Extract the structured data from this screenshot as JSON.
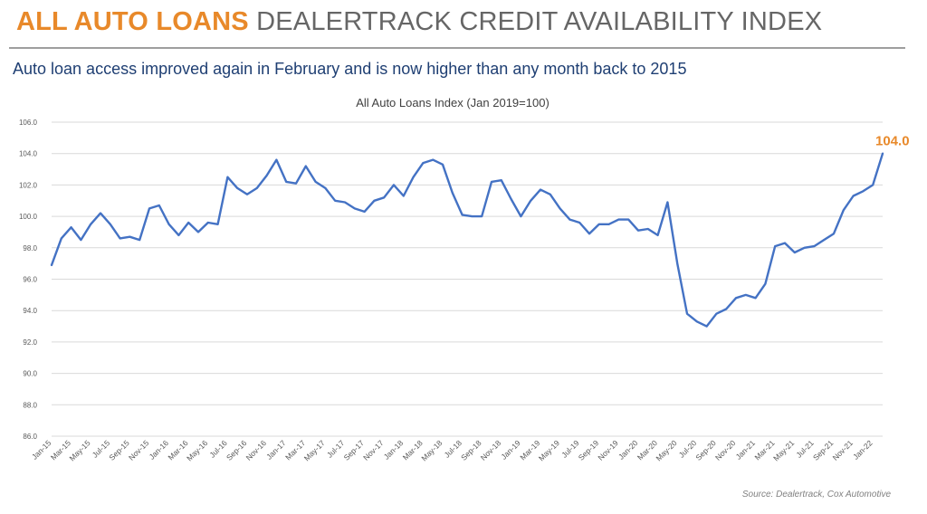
{
  "header": {
    "title_accent": "ALL AUTO LOANS",
    "title_rest": "DEALERTRACK CREDIT AVAILABILITY INDEX",
    "subtitle": "Auto loan access improved again in February and is now higher than any month back to 2015"
  },
  "footer": {
    "source": "Source: Dealertrack, Cox Automotive"
  },
  "colors": {
    "accent": "#e8892a",
    "line": "#4472c4",
    "grid": "#d9d9d9",
    "subtitle": "#1f3f73"
  },
  "chart_data": {
    "type": "line",
    "title": "All Auto Loans Index (Jan 2019=100)",
    "xlabel": "",
    "ylabel": "",
    "ylim": [
      86.0,
      106.0
    ],
    "yticks": [
      "86.0",
      "88.0",
      "90.0",
      "92.0",
      "94.0",
      "96.0",
      "98.0",
      "100.0",
      "102.0",
      "104.0",
      "106.0"
    ],
    "grid": true,
    "tick_labels": [
      "Jan-15",
      "Mar-15",
      "May-15",
      "Jul-15",
      "Sep-15",
      "Nov-15",
      "Jan-16",
      "Mar-16",
      "May-16",
      "Jul-16",
      "Sep-16",
      "Nov-16",
      "Jan-17",
      "Mar-17",
      "May-17",
      "Jul-17",
      "Sep-17",
      "Nov-17",
      "Jan-18",
      "Mar-18",
      "May-18",
      "Jul-18",
      "Sep-18",
      "Nov-18",
      "Jan-19",
      "Mar-19",
      "May-19",
      "Jul-19",
      "Sep-19",
      "Nov-19",
      "Jan-20",
      "Mar-20",
      "May-20",
      "Jul-20",
      "Sep-20",
      "Nov-20",
      "Jan-21",
      "Mar-21",
      "May-21",
      "Jul-21",
      "Sep-21",
      "Nov-21",
      "Jan-22"
    ],
    "x_start": "Jan-15",
    "x_end": "Feb-22",
    "series": [
      {
        "values": [
          96.9,
          98.6,
          99.3,
          98.5,
          99.5,
          100.2,
          99.5,
          98.6,
          98.7,
          98.5,
          100.5,
          100.7,
          99.5,
          98.8,
          99.6,
          99.0,
          99.6,
          99.5,
          102.5,
          101.8,
          101.4,
          101.8,
          102.6,
          103.6,
          102.2,
          102.1,
          103.2,
          102.2,
          101.8,
          101.0,
          100.9,
          100.5,
          100.3,
          101.0,
          101.2,
          102.0,
          101.3,
          102.5,
          103.4,
          103.6,
          103.3,
          101.5,
          100.1,
          100.0,
          100.0,
          102.2,
          102.3,
          101.1,
          100.0,
          101.0,
          101.7,
          101.4,
          100.5,
          99.8,
          99.6,
          98.9,
          99.5,
          99.5,
          99.8,
          99.8,
          99.1,
          99.2,
          98.8,
          100.9,
          97.0,
          93.8,
          93.3,
          93.0,
          93.8,
          94.1,
          94.8,
          95.0,
          94.8,
          95.7,
          98.1,
          98.3,
          97.7,
          98.0,
          98.1,
          98.5,
          98.9,
          100.4,
          101.3,
          101.6,
          102.0,
          104.0
        ]
      }
    ],
    "annotations": [
      {
        "label": "104.0",
        "at": "Feb-22"
      }
    ]
  }
}
